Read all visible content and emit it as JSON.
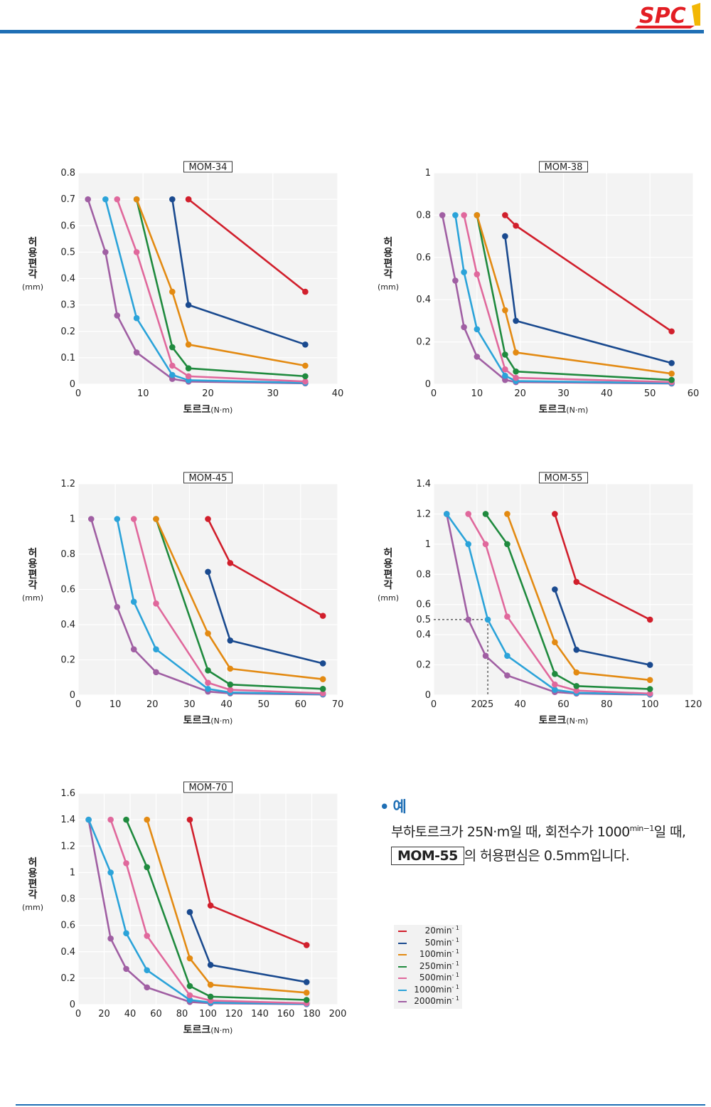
{
  "brand": {
    "logo_text": "SPC",
    "accent": "#1f6fb5",
    "logo_red": "#e31e24",
    "logo_gold": "#f2b705"
  },
  "series_styles": [
    {
      "rpm_label": "20min",
      "color": "#d11f2c"
    },
    {
      "rpm_label": "50min",
      "color": "#1a4a8f"
    },
    {
      "rpm_label": "100min",
      "color": "#e38a12"
    },
    {
      "rpm_label": "250min",
      "color": "#1f8a3e"
    },
    {
      "rpm_label": "500min",
      "color": "#e0689c"
    },
    {
      "rpm_label": "1000min",
      "color": "#2ba3d9"
    },
    {
      "rpm_label": "2000min",
      "color": "#a05fa3"
    }
  ],
  "legend": {
    "superscript": "- 1",
    "items": [
      "20min",
      "50min",
      "100min",
      "250min",
      "500min",
      "1000min",
      "2000min"
    ]
  },
  "example": {
    "bullet": "•",
    "title": "예",
    "line1_pre": "부하토르크가 25N·m일 때, 회전수가 1000",
    "line1_sup": "min−1",
    "line1_post": "일 때,",
    "model_box": "MOM-55",
    "line2_post": "의 허용편심은 0.5mm입니다."
  },
  "chart_data": [
    {
      "type": "line",
      "title": "MOM-34",
      "xlabel_main": "토르크",
      "xlabel_unit": "(N·m)",
      "ylabel": "허용편각",
      "ylabel_unit": "(mm)",
      "xlim": [
        0,
        40
      ],
      "ylim": [
        0,
        0.8
      ],
      "xticks": [
        "0",
        "10",
        "20",
        "30",
        "40"
      ],
      "yticks": [
        "0",
        "0.1",
        "0.2",
        "0.3",
        "0.4",
        "0.5",
        "0.6",
        "0.7",
        "0.8"
      ],
      "grid": true,
      "series": [
        {
          "x": [
            17,
            17,
            35
          ],
          "y": [
            0.7,
            0.7,
            0.35
          ]
        },
        {
          "x": [
            14.5,
            17,
            35
          ],
          "y": [
            0.7,
            0.3,
            0.15
          ]
        },
        {
          "x": [
            9,
            14.5,
            17,
            35
          ],
          "y": [
            0.7,
            0.35,
            0.15,
            0.07
          ]
        },
        {
          "x": [
            9,
            14.5,
            17,
            35
          ],
          "y": [
            0.7,
            0.14,
            0.06,
            0.03
          ]
        },
        {
          "x": [
            6,
            9,
            14.5,
            17,
            35
          ],
          "y": [
            0.7,
            0.5,
            0.07,
            0.03,
            0.01
          ]
        },
        {
          "x": [
            4.2,
            9,
            14.5,
            17,
            35
          ],
          "y": [
            0.7,
            0.25,
            0.035,
            0.015,
            0.005
          ]
        },
        {
          "x": [
            1.5,
            4.2,
            6,
            9,
            14.5,
            17,
            35
          ],
          "y": [
            0.7,
            0.5,
            0.26,
            0.12,
            0.02,
            0.01,
            0.003
          ]
        }
      ]
    },
    {
      "type": "line",
      "title": "MOM-38",
      "xlabel_main": "토르크",
      "xlabel_unit": "(N·m)",
      "ylabel": "허용편각",
      "ylabel_unit": "(mm)",
      "xlim": [
        0,
        60
      ],
      "ylim": [
        0,
        1
      ],
      "xticks": [
        "0",
        "10",
        "20",
        "30",
        "40",
        "50",
        "60"
      ],
      "yticks": [
        "0",
        "0.2",
        "0.4",
        "0.6",
        "0.8",
        "1"
      ],
      "grid": true,
      "series": [
        {
          "x": [
            16.5,
            19,
            55
          ],
          "y": [
            0.8,
            0.75,
            0.25
          ]
        },
        {
          "x": [
            16.5,
            19,
            55
          ],
          "y": [
            0.7,
            0.3,
            0.1
          ]
        },
        {
          "x": [
            10,
            16.5,
            19,
            55
          ],
          "y": [
            0.8,
            0.35,
            0.15,
            0.05
          ]
        },
        {
          "x": [
            10,
            16.5,
            19,
            55
          ],
          "y": [
            0.8,
            0.14,
            0.06,
            0.02
          ]
        },
        {
          "x": [
            7,
            10,
            16.5,
            19,
            55
          ],
          "y": [
            0.8,
            0.52,
            0.07,
            0.03,
            0.01
          ]
        },
        {
          "x": [
            5,
            7,
            10,
            16.5,
            19,
            55
          ],
          "y": [
            0.8,
            0.53,
            0.26,
            0.04,
            0.015,
            0.005
          ]
        },
        {
          "x": [
            2,
            5,
            7,
            10,
            16.5,
            19,
            55
          ],
          "y": [
            0.8,
            0.49,
            0.27,
            0.13,
            0.02,
            0.01,
            0.003
          ]
        }
      ]
    },
    {
      "type": "line",
      "title": "MOM-45",
      "xlabel_main": "토르크",
      "xlabel_unit": "(N·m)",
      "ylabel": "허용편각",
      "ylabel_unit": "(mm)",
      "xlim": [
        0,
        70
      ],
      "ylim": [
        0,
        1.2
      ],
      "xticks": [
        "0",
        "10",
        "20",
        "30",
        "40",
        "50",
        "60",
        "70"
      ],
      "yticks": [
        "0",
        "0.2",
        "0.4",
        "0.6",
        "0.8",
        "1",
        "1.2"
      ],
      "grid": true,
      "series": [
        {
          "x": [
            35,
            41,
            66
          ],
          "y": [
            1,
            0.75,
            0.45
          ]
        },
        {
          "x": [
            35,
            41,
            66
          ],
          "y": [
            0.7,
            0.31,
            0.18
          ]
        },
        {
          "x": [
            21,
            35,
            41,
            66
          ],
          "y": [
            1,
            0.35,
            0.15,
            0.09
          ]
        },
        {
          "x": [
            21,
            35,
            41,
            66
          ],
          "y": [
            1,
            0.14,
            0.06,
            0.035
          ]
        },
        {
          "x": [
            15,
            21,
            35,
            41,
            66
          ],
          "y": [
            1,
            0.52,
            0.07,
            0.03,
            0.01
          ]
        },
        {
          "x": [
            10.5,
            15,
            21,
            35,
            41,
            66
          ],
          "y": [
            1,
            0.53,
            0.26,
            0.035,
            0.015,
            0.005
          ]
        },
        {
          "x": [
            3.5,
            10.5,
            15,
            21,
            35,
            41,
            66
          ],
          "y": [
            1,
            0.5,
            0.26,
            0.13,
            0.02,
            0.01,
            0.003
          ]
        }
      ]
    },
    {
      "type": "line",
      "title": "MOM-55",
      "xlabel_main": "토르크",
      "xlabel_unit": "(N·m)",
      "ylabel": "허용편각",
      "ylabel_unit": "(mm)",
      "xlim": [
        0,
        120
      ],
      "ylim": [
        0,
        1.4
      ],
      "xticks": [
        "0",
        "20",
        "25",
        "40",
        "60",
        "80",
        "100",
        "120"
      ],
      "xtick_values": [
        0,
        20,
        25,
        40,
        60,
        80,
        100,
        120
      ],
      "yticks": [
        "0",
        "0.2",
        "0.4",
        "0.5",
        "0.6",
        "0.8",
        "1",
        "1.2",
        "1.4"
      ],
      "ytick_values": [
        0,
        0.2,
        0.4,
        0.5,
        0.6,
        0.8,
        1,
        1.2,
        1.4
      ],
      "grid": true,
      "reference_point": {
        "x": 25,
        "y": 0.5
      },
      "series": [
        {
          "x": [
            56,
            66,
            100
          ],
          "y": [
            1.2,
            0.75,
            0.5
          ]
        },
        {
          "x": [
            56,
            66,
            100
          ],
          "y": [
            0.7,
            0.3,
            0.2
          ]
        },
        {
          "x": [
            34,
            56,
            66,
            100
          ],
          "y": [
            1.2,
            0.35,
            0.15,
            0.1
          ]
        },
        {
          "x": [
            24,
            34,
            56,
            66,
            100
          ],
          "y": [
            1.2,
            1,
            0.14,
            0.06,
            0.04
          ]
        },
        {
          "x": [
            16,
            24,
            34,
            56,
            66,
            100
          ],
          "y": [
            1.2,
            1,
            0.52,
            0.07,
            0.03,
            0.01
          ]
        },
        {
          "x": [
            6,
            16,
            25,
            34,
            56,
            66,
            100
          ],
          "y": [
            1.2,
            1,
            0.5,
            0.26,
            0.035,
            0.015,
            0.005
          ]
        },
        {
          "x": [
            6,
            16,
            24,
            34,
            56,
            66,
            100
          ],
          "y": [
            1.2,
            0.5,
            0.26,
            0.13,
            0.02,
            0.01,
            0.003
          ]
        }
      ]
    },
    {
      "type": "line",
      "title": "MOM-70",
      "xlabel_main": "토르크",
      "xlabel_unit": "(N·m)",
      "ylabel": "허용편각",
      "ylabel_unit": "(mm)",
      "xlim": [
        0,
        200
      ],
      "ylim": [
        0,
        1.6
      ],
      "xticks": [
        "0",
        "20",
        "40",
        "60",
        "80",
        "100",
        "120",
        "140",
        "160",
        "180",
        "200"
      ],
      "yticks": [
        "0",
        "0.2",
        "0.4",
        "0.6",
        "0.8",
        "1",
        "1.2",
        "1.4",
        "1.6"
      ],
      "grid": true,
      "series": [
        {
          "x": [
            86,
            102,
            176
          ],
          "y": [
            1.4,
            0.75,
            0.45
          ]
        },
        {
          "x": [
            86,
            102,
            176
          ],
          "y": [
            0.7,
            0.3,
            0.17
          ]
        },
        {
          "x": [
            53,
            86,
            102,
            176
          ],
          "y": [
            1.4,
            0.35,
            0.15,
            0.09
          ]
        },
        {
          "x": [
            37,
            53,
            86,
            102,
            176
          ],
          "y": [
            1.4,
            1.04,
            0.14,
            0.06,
            0.035
          ]
        },
        {
          "x": [
            25,
            37,
            53,
            86,
            102,
            176
          ],
          "y": [
            1.4,
            1.07,
            0.52,
            0.07,
            0.03,
            0.01
          ]
        },
        {
          "x": [
            8,
            25,
            37,
            53,
            86,
            102,
            176
          ],
          "y": [
            1.4,
            1,
            0.54,
            0.26,
            0.035,
            0.015,
            0.005
          ]
        },
        {
          "x": [
            8,
            25,
            37,
            53,
            86,
            102,
            176
          ],
          "y": [
            1.4,
            0.5,
            0.27,
            0.13,
            0.02,
            0.01,
            0.003
          ]
        }
      ]
    }
  ]
}
